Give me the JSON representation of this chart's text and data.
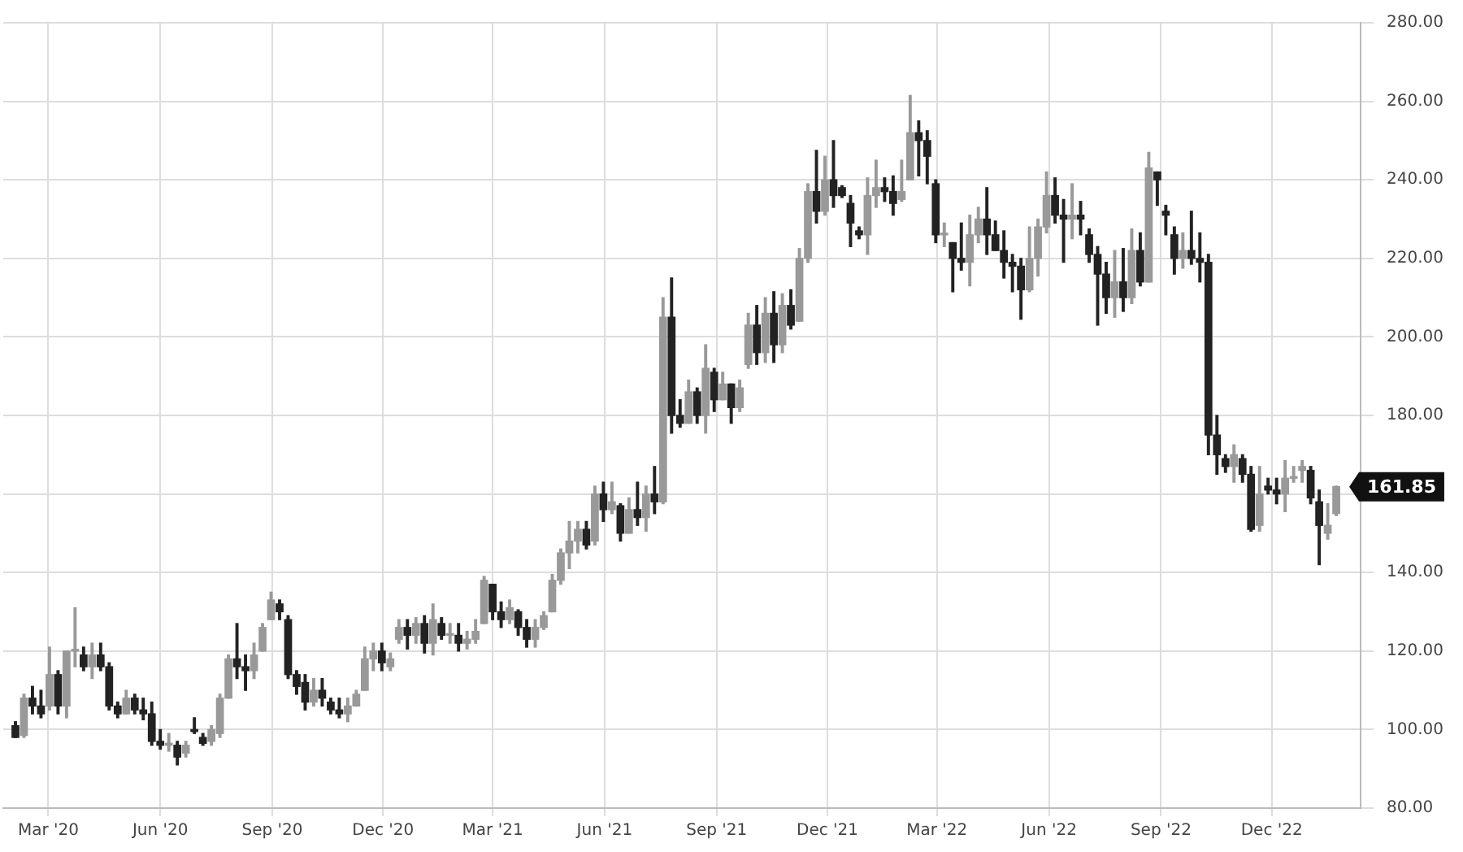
{
  "chart_data": {
    "type": "candlestick",
    "grid": true,
    "xlim": [
      "2020-01-24",
      "2023-02-12"
    ],
    "ylim": [
      80,
      280
    ],
    "xticks": [
      {
        "value": "2020-03-01",
        "label": "Mar '20"
      },
      {
        "value": "2020-06-01",
        "label": "Jun '20"
      },
      {
        "value": "2020-09-01",
        "label": "Sep '20"
      },
      {
        "value": "2020-12-01",
        "label": "Dec '20"
      },
      {
        "value": "2021-03-01",
        "label": "Mar '21"
      },
      {
        "value": "2021-06-01",
        "label": "Jun '21"
      },
      {
        "value": "2021-09-01",
        "label": "Sep '21"
      },
      {
        "value": "2021-12-01",
        "label": "Dec '21"
      },
      {
        "value": "2022-03-01",
        "label": "Mar '22"
      },
      {
        "value": "2022-06-01",
        "label": "Jun '22"
      },
      {
        "value": "2022-09-01",
        "label": "Sep '22"
      },
      {
        "value": "2022-12-01",
        "label": "Dec '22"
      }
    ],
    "yticks": [
      {
        "value": 80,
        "label": "80.00"
      },
      {
        "value": 100,
        "label": "100.00"
      },
      {
        "value": 120,
        "label": "120.00"
      },
      {
        "value": 140,
        "label": "140.00"
      },
      {
        "value": 160,
        "label": null
      },
      {
        "value": 180,
        "label": "180.00"
      },
      {
        "value": 200,
        "label": "200.00"
      },
      {
        "value": 220,
        "label": "220.00"
      },
      {
        "value": 240,
        "label": "240.00"
      },
      {
        "value": 260,
        "label": "260.00"
      },
      {
        "value": 280,
        "label": "280.00"
      }
    ],
    "colors": [
      "#222222",
      "#999999",
      "#222222",
      "#222222",
      "#999999",
      "#222222",
      "#999999",
      "#999999",
      "#222222",
      "#999999",
      "#222222",
      "#222222",
      "#222222",
      "#999999",
      "#222222",
      "#222222",
      "#222222",
      "#222222",
      "#999999",
      "#222222",
      "#999999",
      "#222222",
      "#222222",
      "#999999",
      "#999999",
      "#999999",
      "#222222",
      "#222222",
      "#999999",
      "#999999",
      "#999999",
      "#222222",
      "#222222",
      "#222222",
      "#222222",
      "#999999",
      "#222222",
      "#222222",
      "#222222",
      "#999999",
      "#999999",
      "#999999",
      "#999999",
      "#222222",
      "#999999",
      "#999999",
      "#222222",
      "#999999",
      "#222222",
      "#999999",
      "#222222",
      "#999999",
      "#222222",
      "#999999",
      "#999999",
      "#999999",
      "#222222",
      "#222222",
      "#999999",
      "#222222",
      "#222222",
      "#999999",
      "#999999",
      "#999999",
      "#999999",
      "#999999",
      "#999999",
      "#222222",
      "#999999",
      "#222222",
      "#999999",
      "#222222",
      "#999999",
      "#222222",
      "#999999",
      "#222222",
      "#999999",
      "#222222",
      "#222222",
      "#999999",
      "#222222",
      "#999999",
      "#222222",
      "#999999",
      "#222222",
      "#999999",
      "#999999",
      "#222222",
      "#999999",
      "#222222",
      "#999999",
      "#222222",
      "#999999",
      "#999999",
      "#222222",
      "#999999",
      "#222222",
      "#222222",
      "#222222",
      "#222222",
      "#999999",
      "#999999",
      "#222222",
      "#222222",
      "#999999",
      "#999999",
      "#222222",
      "#222222",
      "#222222",
      "#999999",
      "#222222",
      "#222222",
      "#999999",
      "#999999",
      "#222222",
      "#222222",
      "#222222",
      "#222222",
      "#222222",
      "#999999",
      "#999999",
      "#999999",
      "#222222",
      "#222222",
      "#999999",
      "#222222",
      "#222222",
      "#222222",
      "#222222",
      "#999999",
      "#222222",
      "#999999",
      "#222222",
      "#999999",
      "#222222",
      "#222222",
      "#222222",
      "#999999",
      "#222222",
      "#222222",
      "#222222",
      "#222222",
      "#222222",
      "#999999",
      "#222222",
      "#222222",
      "#999999",
      "#222222",
      "#222222",
      "#999999",
      "#999999",
      "#999999",
      "#222222",
      "#222222",
      "#999999",
      "#999999"
    ],
    "annotations": [
      {
        "text": "161.85",
        "x": "2023-01-23",
        "y": 161.85
      }
    ],
    "x": [
      "2020-02-03",
      "2020-02-10",
      "2020-02-17",
      "2020-02-24",
      "2020-03-02",
      "2020-03-09",
      "2020-03-16",
      "2020-03-23",
      "2020-03-30",
      "2020-04-06",
      "2020-04-13",
      "2020-04-20",
      "2020-04-27",
      "2020-05-04",
      "2020-05-11",
      "2020-05-18",
      "2020-05-25",
      "2020-06-01",
      "2020-06-08",
      "2020-06-15",
      "2020-06-22",
      "2020-06-29",
      "2020-07-06",
      "2020-07-13",
      "2020-07-20",
      "2020-07-27",
      "2020-08-03",
      "2020-08-10",
      "2020-08-17",
      "2020-08-24",
      "2020-08-31",
      "2020-09-07",
      "2020-09-14",
      "2020-09-21",
      "2020-09-28",
      "2020-10-05",
      "2020-10-12",
      "2020-10-19",
      "2020-10-26",
      "2020-11-02",
      "2020-11-09",
      "2020-11-16",
      "2020-11-23",
      "2020-11-30",
      "2020-12-07",
      "2020-12-14",
      "2020-12-21",
      "2020-12-28",
      "2021-01-04",
      "2021-01-11",
      "2021-01-18",
      "2021-01-25",
      "2021-02-01",
      "2021-02-08",
      "2021-02-15",
      "2021-02-22",
      "2021-03-01",
      "2021-03-08",
      "2021-03-15",
      "2021-03-22",
      "2021-03-29",
      "2021-04-05",
      "2021-04-12",
      "2021-04-19",
      "2021-04-26",
      "2021-05-03",
      "2021-05-10",
      "2021-05-17",
      "2021-05-24",
      "2021-05-31",
      "2021-06-07",
      "2021-06-14",
      "2021-06-21",
      "2021-06-28",
      "2021-07-05",
      "2021-07-12",
      "2021-07-19",
      "2021-07-26",
      "2021-08-02",
      "2021-08-09",
      "2021-08-16",
      "2021-08-23",
      "2021-08-30",
      "2021-09-06",
      "2021-09-13",
      "2021-09-20",
      "2021-09-27",
      "2021-10-04",
      "2021-10-11",
      "2021-10-18",
      "2021-10-25",
      "2021-11-01",
      "2021-11-08",
      "2021-11-15",
      "2021-11-22",
      "2021-11-29",
      "2021-12-06",
      "2021-12-13",
      "2021-12-20",
      "2021-12-27",
      "2022-01-03",
      "2022-01-10",
      "2022-01-17",
      "2022-01-24",
      "2022-01-31",
      "2022-02-07",
      "2022-02-14",
      "2022-02-21",
      "2022-02-28",
      "2022-03-07",
      "2022-03-14",
      "2022-03-21",
      "2022-03-28",
      "2022-04-04",
      "2022-04-11",
      "2022-04-18",
      "2022-04-25",
      "2022-05-02",
      "2022-05-09",
      "2022-05-16",
      "2022-05-23",
      "2022-05-30",
      "2022-06-06",
      "2022-06-13",
      "2022-06-20",
      "2022-06-27",
      "2022-07-04",
      "2022-07-11",
      "2022-07-18",
      "2022-07-25",
      "2022-08-01",
      "2022-08-08",
      "2022-08-15",
      "2022-08-22",
      "2022-08-29",
      "2022-09-05",
      "2022-09-12",
      "2022-09-19",
      "2022-09-26",
      "2022-10-03",
      "2022-10-10",
      "2022-10-17",
      "2022-10-24",
      "2022-10-31",
      "2022-11-07",
      "2022-11-14",
      "2022-11-21",
      "2022-11-28",
      "2022-12-05",
      "2022-12-12",
      "2022-12-19",
      "2022-12-26",
      "2023-01-02",
      "2023-01-09",
      "2023-01-16",
      "2023-01-23"
    ],
    "ohlc": [
      [
        101,
        102,
        98,
        98
      ],
      [
        98.5,
        109,
        98,
        108
      ],
      [
        108,
        111,
        104,
        106
      ],
      [
        106,
        110,
        103,
        104
      ],
      [
        106,
        121,
        105,
        114
      ],
      [
        114,
        115,
        104,
        106
      ],
      [
        106,
        120,
        103,
        120
      ],
      [
        120,
        131,
        116,
        120
      ],
      [
        119,
        121,
        115,
        116
      ],
      [
        116,
        122,
        113,
        119
      ],
      [
        119,
        122,
        115,
        116
      ],
      [
        116,
        117,
        105,
        106
      ],
      [
        106,
        107,
        103,
        104
      ],
      [
        104,
        110,
        104,
        108
      ],
      [
        108,
        109,
        104,
        105
      ],
      [
        105,
        108,
        102.5,
        104
      ],
      [
        104,
        107,
        96,
        97
      ],
      [
        97,
        100,
        95,
        96
      ],
      [
        96,
        99,
        94.5,
        96.5
      ],
      [
        96,
        97,
        91,
        93
      ],
      [
        94,
        97,
        93,
        96
      ],
      [
        100,
        103,
        99,
        99.5
      ],
      [
        98,
        99,
        96,
        96.5
      ],
      [
        97,
        101,
        96,
        100
      ],
      [
        99,
        109,
        98,
        108
      ],
      [
        108,
        119,
        108,
        118
      ],
      [
        118,
        127,
        113,
        116
      ],
      [
        116,
        119,
        110,
        115
      ],
      [
        115,
        122,
        113,
        119
      ],
      [
        120,
        127,
        120,
        126
      ],
      [
        128,
        135,
        128,
        133
      ],
      [
        132,
        133,
        128,
        130
      ],
      [
        128,
        129,
        113,
        114
      ],
      [
        114,
        115,
        109,
        111
      ],
      [
        112,
        114,
        105,
        107
      ],
      [
        107,
        113,
        106,
        110
      ],
      [
        110,
        113,
        106,
        108
      ],
      [
        107,
        108,
        104,
        105
      ],
      [
        105,
        108,
        103,
        104
      ],
      [
        104,
        108,
        102,
        106
      ],
      [
        106,
        110,
        106,
        109
      ],
      [
        110,
        121,
        110,
        118
      ],
      [
        118,
        122,
        115,
        120
      ],
      [
        120,
        122,
        115,
        117
      ],
      [
        116,
        119.5,
        115,
        118
      ],
      [
        123,
        128,
        122,
        126
      ],
      [
        126,
        128,
        120.5,
        124
      ],
      [
        124,
        128.5,
        122,
        127
      ],
      [
        127,
        129,
        119.5,
        122
      ],
      [
        122,
        132,
        119,
        128
      ],
      [
        127,
        128.5,
        123,
        124
      ],
      [
        124,
        127,
        122,
        124
      ],
      [
        124,
        127,
        120,
        122
      ],
      [
        122,
        125,
        120.5,
        123
      ],
      [
        123,
        128,
        122,
        125
      ],
      [
        127,
        139,
        127,
        138
      ],
      [
        137,
        137,
        128,
        130
      ],
      [
        130,
        132.5,
        126,
        128
      ],
      [
        128,
        133,
        127,
        131
      ],
      [
        130,
        130.5,
        124,
        126
      ],
      [
        126,
        128,
        121,
        123
      ],
      [
        123,
        128,
        121,
        126
      ],
      [
        126,
        130,
        125.5,
        129
      ],
      [
        130,
        139.5,
        130,
        138
      ],
      [
        138,
        146,
        137,
        145
      ],
      [
        145,
        153,
        141,
        148
      ],
      [
        148,
        153,
        145,
        151
      ],
      [
        151,
        153,
        146,
        147
      ],
      [
        148,
        162,
        147,
        160
      ],
      [
        160,
        163,
        153,
        156
      ],
      [
        156,
        163,
        155,
        158
      ],
      [
        157,
        157.5,
        148,
        150
      ],
      [
        150,
        159,
        150,
        156
      ],
      [
        156,
        163,
        152,
        154
      ],
      [
        154,
        162,
        150.5,
        160
      ],
      [
        160,
        167,
        155,
        158
      ],
      [
        158,
        210,
        157.5,
        205
      ],
      [
        205,
        215,
        175.5,
        180
      ],
      [
        180,
        184,
        177,
        178
      ],
      [
        178,
        189,
        178,
        186
      ],
      [
        186,
        187,
        178,
        180
      ],
      [
        180,
        198,
        175.5,
        192
      ],
      [
        191,
        192,
        181,
        184
      ],
      [
        184,
        191,
        184,
        188
      ],
      [
        188,
        188,
        178,
        182
      ],
      [
        182,
        189,
        181,
        187
      ],
      [
        193,
        206,
        192,
        203
      ],
      [
        203,
        208,
        193,
        196
      ],
      [
        196,
        210,
        193.5,
        206
      ],
      [
        206,
        211.5,
        193.5,
        198
      ],
      [
        198,
        211,
        196,
        208
      ],
      [
        208,
        212,
        202,
        203
      ],
      [
        204,
        222.5,
        204,
        220
      ],
      [
        220,
        239,
        219,
        237
      ],
      [
        237,
        247.5,
        229,
        232
      ],
      [
        232,
        246,
        231,
        240
      ],
      [
        240,
        250,
        233,
        236
      ],
      [
        238,
        238.5,
        235.5,
        236
      ],
      [
        234,
        236,
        223,
        229
      ],
      [
        227,
        228,
        225,
        226
      ],
      [
        226,
        240.5,
        221,
        236
      ],
      [
        236,
        245,
        233,
        238
      ],
      [
        238,
        240.5,
        234.5,
        237
      ],
      [
        237,
        241,
        231,
        234
      ],
      [
        235,
        245,
        234.5,
        237
      ],
      [
        240,
        261.5,
        240,
        252
      ],
      [
        252,
        255,
        241,
        250
      ],
      [
        250,
        252.5,
        239,
        246
      ],
      [
        239,
        240,
        224,
        226
      ],
      [
        226,
        229,
        223,
        226
      ],
      [
        224,
        224,
        211.5,
        220
      ],
      [
        220,
        229,
        217,
        219
      ],
      [
        219,
        231,
        213,
        226
      ],
      [
        226,
        233,
        224,
        230
      ],
      [
        230,
        238,
        221,
        226
      ],
      [
        226,
        229.5,
        222,
        222
      ],
      [
        222,
        227,
        215,
        219
      ],
      [
        219,
        221,
        211.5,
        218
      ],
      [
        218,
        220,
        204.5,
        212
      ],
      [
        212,
        228,
        211.5,
        220
      ],
      [
        220,
        230,
        215.5,
        228
      ],
      [
        228,
        242,
        226.5,
        236
      ],
      [
        236,
        240.5,
        229,
        231
      ],
      [
        231,
        235,
        219,
        230
      ],
      [
        230,
        239,
        225,
        231
      ],
      [
        231,
        234.5,
        226,
        230
      ],
      [
        226,
        227.5,
        219,
        221
      ],
      [
        221,
        223,
        203,
        216
      ],
      [
        216,
        219,
        206,
        210
      ],
      [
        210,
        222,
        205,
        214
      ],
      [
        214,
        222.5,
        206.5,
        210
      ],
      [
        210,
        227.5,
        208.5,
        222
      ],
      [
        222,
        226.5,
        213,
        214
      ],
      [
        214,
        247,
        214,
        243
      ],
      [
        242,
        242,
        233.5,
        240
      ],
      [
        232,
        233.5,
        226,
        231
      ],
      [
        226,
        228,
        216,
        220
      ],
      [
        220,
        226.5,
        217.5,
        222
      ],
      [
        222,
        232,
        218.5,
        220
      ],
      [
        220,
        226.5,
        214,
        219
      ],
      [
        219,
        221,
        170,
        175
      ],
      [
        175,
        180,
        165,
        170
      ],
      [
        169,
        170,
        165.5,
        167
      ],
      [
        167,
        172.5,
        163,
        170
      ],
      [
        169,
        170,
        163,
        165
      ],
      [
        165,
        167,
        150.5,
        151
      ],
      [
        152,
        167,
        150.5,
        160
      ],
      [
        162,
        164,
        160,
        161
      ],
      [
        161,
        164,
        157.5,
        160
      ],
      [
        160,
        168.5,
        155.5,
        164
      ],
      [
        164,
        167,
        163,
        164
      ],
      [
        166,
        168.5,
        163,
        167
      ],
      [
        166,
        167,
        157.5,
        159
      ],
      [
        158,
        161,
        142,
        152
      ],
      [
        150,
        157.5,
        148.5,
        152
      ],
      [
        155,
        162,
        154.5,
        161.85
      ]
    ]
  }
}
